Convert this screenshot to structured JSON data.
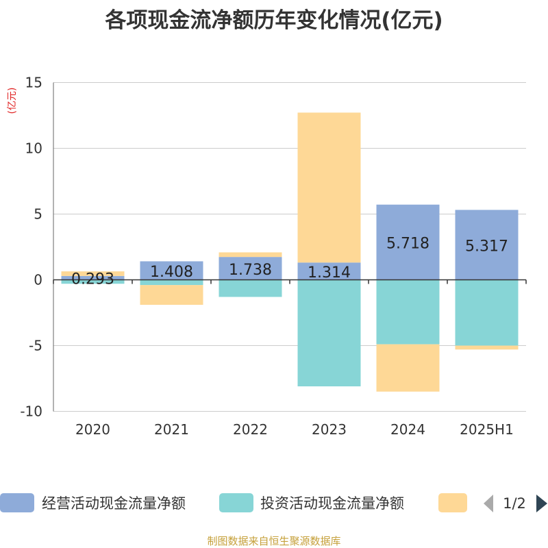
{
  "title": "各项现金流净额历年变化情况(亿元)",
  "source": "制图数据来自恒生聚源数据库",
  "chart_data": {
    "type": "bar",
    "stacked": true,
    "categories": [
      "2020",
      "2021",
      "2022",
      "2023",
      "2024",
      "2025H1"
    ],
    "ylabel": "(亿元)",
    "ylim": [
      -10,
      15
    ],
    "yticks": [
      15,
      10,
      5,
      0,
      -5,
      -10
    ],
    "grid": true,
    "series": [
      {
        "name": "经营活动现金流量净额",
        "color": "#8eabd9",
        "values": [
          0.293,
          1.408,
          1.738,
          1.314,
          5.718,
          5.317
        ],
        "labels": [
          "0.293",
          "1.408",
          "1.738",
          "1.314",
          "5.718",
          "5.317"
        ]
      },
      {
        "name": "投资活动现金流量净额",
        "color": "#87d5d6",
        "values": [
          -0.3,
          -0.4,
          -1.3,
          -8.1,
          -4.9,
          -5.0
        ]
      },
      {
        "name": "",
        "color": "#fed896",
        "values": [
          0.35,
          -1.5,
          0.35,
          11.4,
          -3.6,
          -0.3
        ]
      }
    ],
    "legend": {
      "position": "bottom",
      "page": "1/2"
    }
  }
}
